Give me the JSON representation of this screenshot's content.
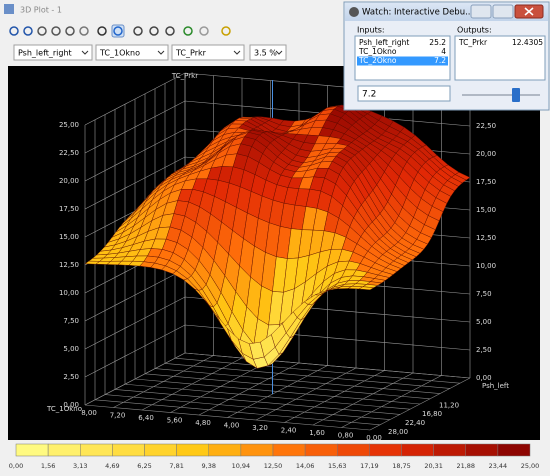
{
  "window": {
    "title": "3D Plot - 1"
  },
  "toolbar": {
    "selectors": [
      "Psh_left_right",
      "TC_1Okno",
      "TC_Prkr",
      "3.5 %"
    ]
  },
  "plot": {
    "z_label": "TC_Prkr",
    "x_label": "TC_1Okno",
    "y_label": "Psh_left",
    "z_ticks_left": [
      "0,00",
      "2,50",
      "5,00",
      "7,50",
      "10,00",
      "12,50",
      "15,00",
      "17,50",
      "20,00",
      "22,50",
      "25,00"
    ],
    "z_ticks_right": [
      "0,00",
      "2,50",
      "5,00",
      "7,50",
      "10,00",
      "12,50",
      "15,00",
      "17,50",
      "20,00",
      "22,50"
    ],
    "x_ticks": [
      "8,00",
      "7,20",
      "6,40",
      "5,60",
      "4,80",
      "4,00",
      "3,20",
      "2,40",
      "1,60",
      "0,80",
      "0,00"
    ],
    "y_ticks": [
      "28,00",
      "22,40",
      "16,80",
      "11,20"
    ]
  },
  "color_scale": {
    "labels": [
      "0,00",
      "1,56",
      "3,13",
      "4,69",
      "6,25",
      "7,81",
      "9,38",
      "10,94",
      "12,50",
      "14,06",
      "15,63",
      "17,19",
      "18,75",
      "20,31",
      "21,88",
      "23,44",
      "25,00"
    ]
  },
  "watch": {
    "title": "Watch: Interactive Debu...",
    "inputs_label": "Inputs:",
    "outputs_label": "Outputs:",
    "inputs": [
      {
        "name": "Psh_left_right",
        "value": "25.2"
      },
      {
        "name": "TC_1Okno",
        "value": "4"
      },
      {
        "name": "TC_2Okno",
        "value": "7.2"
      }
    ],
    "outputs": [
      {
        "name": "TC_Prkr",
        "value": "12.4305"
      }
    ],
    "edit_value": "7.2"
  }
}
